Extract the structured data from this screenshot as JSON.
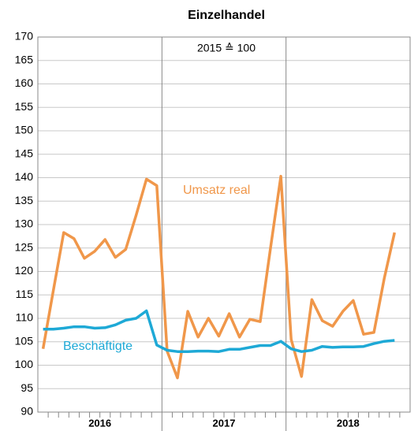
{
  "chart_data": {
    "type": "line",
    "title": "Einzelhandel",
    "annotation": "2015 ≙ 100",
    "categories": [
      null,
      null,
      null,
      null,
      null,
      null,
      null,
      null,
      null,
      null,
      null,
      null,
      null,
      null,
      null,
      null,
      null,
      null,
      null,
      null,
      null,
      null,
      null,
      null,
      null,
      null,
      null,
      null,
      null,
      null,
      null,
      null,
      null,
      null,
      null
    ],
    "year_labels": [
      "2016",
      "2017",
      "2018"
    ],
    "series": [
      {
        "name": "Umsatz real",
        "color": "#f0974a",
        "values": [
          103.5,
          116,
          128.3,
          127,
          122.8,
          124.3,
          126.8,
          123,
          124.7,
          132,
          139.7,
          138.3,
          103,
          97.3,
          111.5,
          106,
          110,
          106.2,
          111,
          106,
          109.8,
          109.3,
          125,
          140.3,
          105.5,
          97.6,
          114,
          109.5,
          108.3,
          111.5,
          113.8,
          106.6,
          107,
          118.5,
          128.3
        ]
      },
      {
        "name": "Beschäftigte",
        "color": "#1ea9d6",
        "values": [
          107.7,
          107.7,
          107.9,
          108.2,
          108.2,
          107.9,
          108,
          108.6,
          109.6,
          110,
          111.6,
          104.3,
          103.2,
          102.9,
          102.9,
          103,
          103,
          102.9,
          103.4,
          103.4,
          103.8,
          104.2,
          104.2,
          105.1,
          103.5,
          102.9,
          103.2,
          104,
          103.8,
          103.9,
          103.9,
          104,
          104.6,
          105.1,
          105.3
        ]
      }
    ],
    "ylim": [
      90,
      170
    ],
    "yticks": [
      90,
      95,
      100,
      105,
      110,
      115,
      120,
      125,
      130,
      135,
      140,
      145,
      150,
      155,
      160,
      165,
      170
    ],
    "grid": true
  }
}
